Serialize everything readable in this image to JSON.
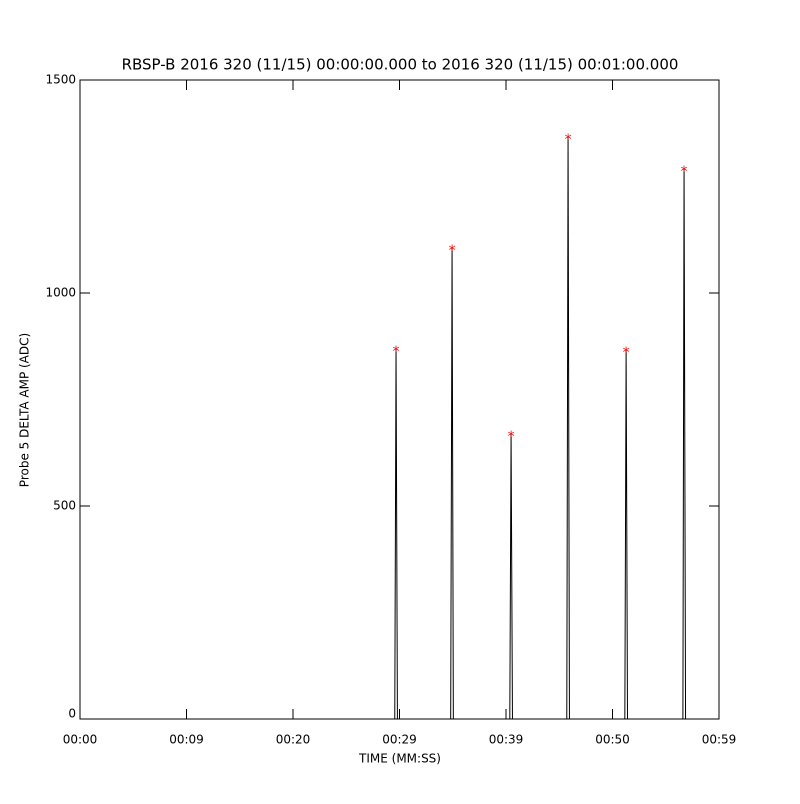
{
  "chart_data": {
    "type": "line",
    "title": "RBSP-B 2016 320 (11/15) 00:00:00.000 to 2016 320 (11/15) 00:01:00.000",
    "x_label": "TIME (MM:SS)",
    "y_label": "Probe 5 DELTA AMP (ADC)",
    "xlim": [
      0,
      59.99
    ],
    "ylim": [
      0,
      1500
    ],
    "xticks": [
      {
        "value": 0,
        "label": "00:00"
      },
      {
        "value": 9.998,
        "label": "00:09"
      },
      {
        "value": 19.997,
        "label": "00:20"
      },
      {
        "value": 29.995,
        "label": "00:29"
      },
      {
        "value": 39.993,
        "label": "00:39"
      },
      {
        "value": 49.992,
        "label": "00:50"
      },
      {
        "value": 59.99,
        "label": "00:59"
      }
    ],
    "yticks": [
      0,
      500,
      1000,
      1500
    ],
    "series": [
      {
        "color": "#000000",
        "marker": "none",
        "x": [
          0,
          29.55,
          29.67,
          29.8,
          34.8,
          34.93,
          35.05,
          40.35,
          40.47,
          40.6,
          45.7,
          45.82,
          45.95,
          51.15,
          51.27,
          51.4,
          56.6,
          56.71,
          56.85,
          59.99
        ],
        "values": [
          0,
          0,
          868,
          0,
          0,
          1106,
          0,
          0,
          669,
          0,
          0,
          1366,
          0,
          0,
          866,
          0,
          0,
          1291,
          0,
          0
        ]
      },
      {
        "color": "#ff0000",
        "marker": "asterisk",
        "x": [
          29.67,
          34.93,
          40.47,
          45.82,
          51.27,
          56.71
        ],
        "values": [
          868,
          1106,
          669,
          1366,
          866,
          1291
        ]
      }
    ]
  }
}
